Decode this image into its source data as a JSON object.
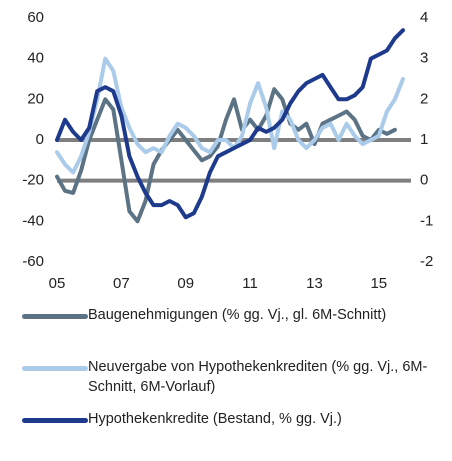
{
  "chart_data": {
    "type": "line",
    "x": [
      2005.0,
      2005.25,
      2005.5,
      2005.75,
      2006.0,
      2006.25,
      2006.5,
      2006.75,
      2007.0,
      2007.25,
      2007.5,
      2007.75,
      2008.0,
      2008.25,
      2008.5,
      2008.75,
      2009.0,
      2009.25,
      2009.5,
      2009.75,
      2010.0,
      2010.25,
      2010.5,
      2010.75,
      2011.0,
      2011.25,
      2011.5,
      2011.75,
      2012.0,
      2012.25,
      2012.5,
      2012.75,
      2013.0,
      2013.25,
      2013.5,
      2013.75,
      2014.0,
      2014.25,
      2014.5,
      2014.75,
      2015.0,
      2015.25,
      2015.5,
      2015.75
    ],
    "xlim": [
      2005,
      2016
    ],
    "xticks": [
      {
        "value": 2005,
        "label": "05"
      },
      {
        "value": 2007,
        "label": "07"
      },
      {
        "value": 2009,
        "label": "09"
      },
      {
        "value": 2011,
        "label": "11"
      },
      {
        "value": 2013,
        "label": "13"
      },
      {
        "value": 2015,
        "label": "15"
      }
    ],
    "ylim": [
      -60,
      60
    ],
    "yticks": [
      -60,
      -40,
      -20,
      0,
      20,
      40,
      60
    ],
    "y2lim": [
      -2,
      4
    ],
    "y2ticks": [
      -2,
      -1,
      0,
      1,
      2,
      3,
      4
    ],
    "series": [
      {
        "name": "Baugenehmigungen (% gg. Vj., gl. 6M-Schnitt)",
        "color": "#5b7384",
        "axis": "y",
        "values": [
          -18,
          -25,
          -26,
          -15,
          0,
          10,
          20,
          15,
          -10,
          -35,
          -40,
          -30,
          -12,
          -5,
          0,
          5,
          0,
          -5,
          -10,
          -8,
          -3,
          10,
          20,
          5,
          10,
          5,
          12,
          25,
          20,
          8,
          5,
          8,
          -2,
          8,
          10,
          12,
          14,
          10,
          2,
          0,
          5,
          3,
          5,
          null
        ]
      },
      {
        "name": "Neuvergabe von Hypothekenkrediten (% gg. Vj., 6M-Schnitt, 6M-Vorlauf)",
        "color": "#aacbea",
        "axis": "y2",
        "values": [
          0.7,
          0.4,
          0.2,
          0.6,
          1.2,
          2.0,
          3.0,
          2.7,
          1.8,
          1.3,
          0.9,
          0.7,
          0.8,
          0.7,
          1.1,
          1.4,
          1.3,
          1.1,
          0.8,
          0.7,
          1.0,
          1.0,
          0.8,
          1.1,
          1.9,
          2.4,
          1.8,
          0.8,
          1.7,
          1.5,
          1.0,
          0.8,
          1.0,
          1.3,
          1.4,
          1.0,
          1.4,
          1.1,
          0.9,
          1.0,
          1.1,
          1.7,
          2.0,
          2.5
        ]
      },
      {
        "name": "Hypothekenkredite (Bestand, % gg. Vj.)",
        "color": "#1d3a8c",
        "axis": "y2",
        "values": [
          1.0,
          1.5,
          1.2,
          1.0,
          1.3,
          2.2,
          2.3,
          2.2,
          1.6,
          0.6,
          0.1,
          -0.3,
          -0.6,
          -0.6,
          -0.5,
          -0.6,
          -0.9,
          -0.8,
          -0.4,
          0.2,
          0.6,
          0.7,
          0.8,
          0.9,
          1.0,
          1.3,
          1.2,
          1.3,
          1.5,
          1.9,
          2.2,
          2.4,
          2.5,
          2.6,
          2.3,
          2.0,
          2.0,
          2.1,
          2.3,
          3.0,
          3.1,
          3.2,
          3.5,
          3.7
        ]
      }
    ]
  }
}
